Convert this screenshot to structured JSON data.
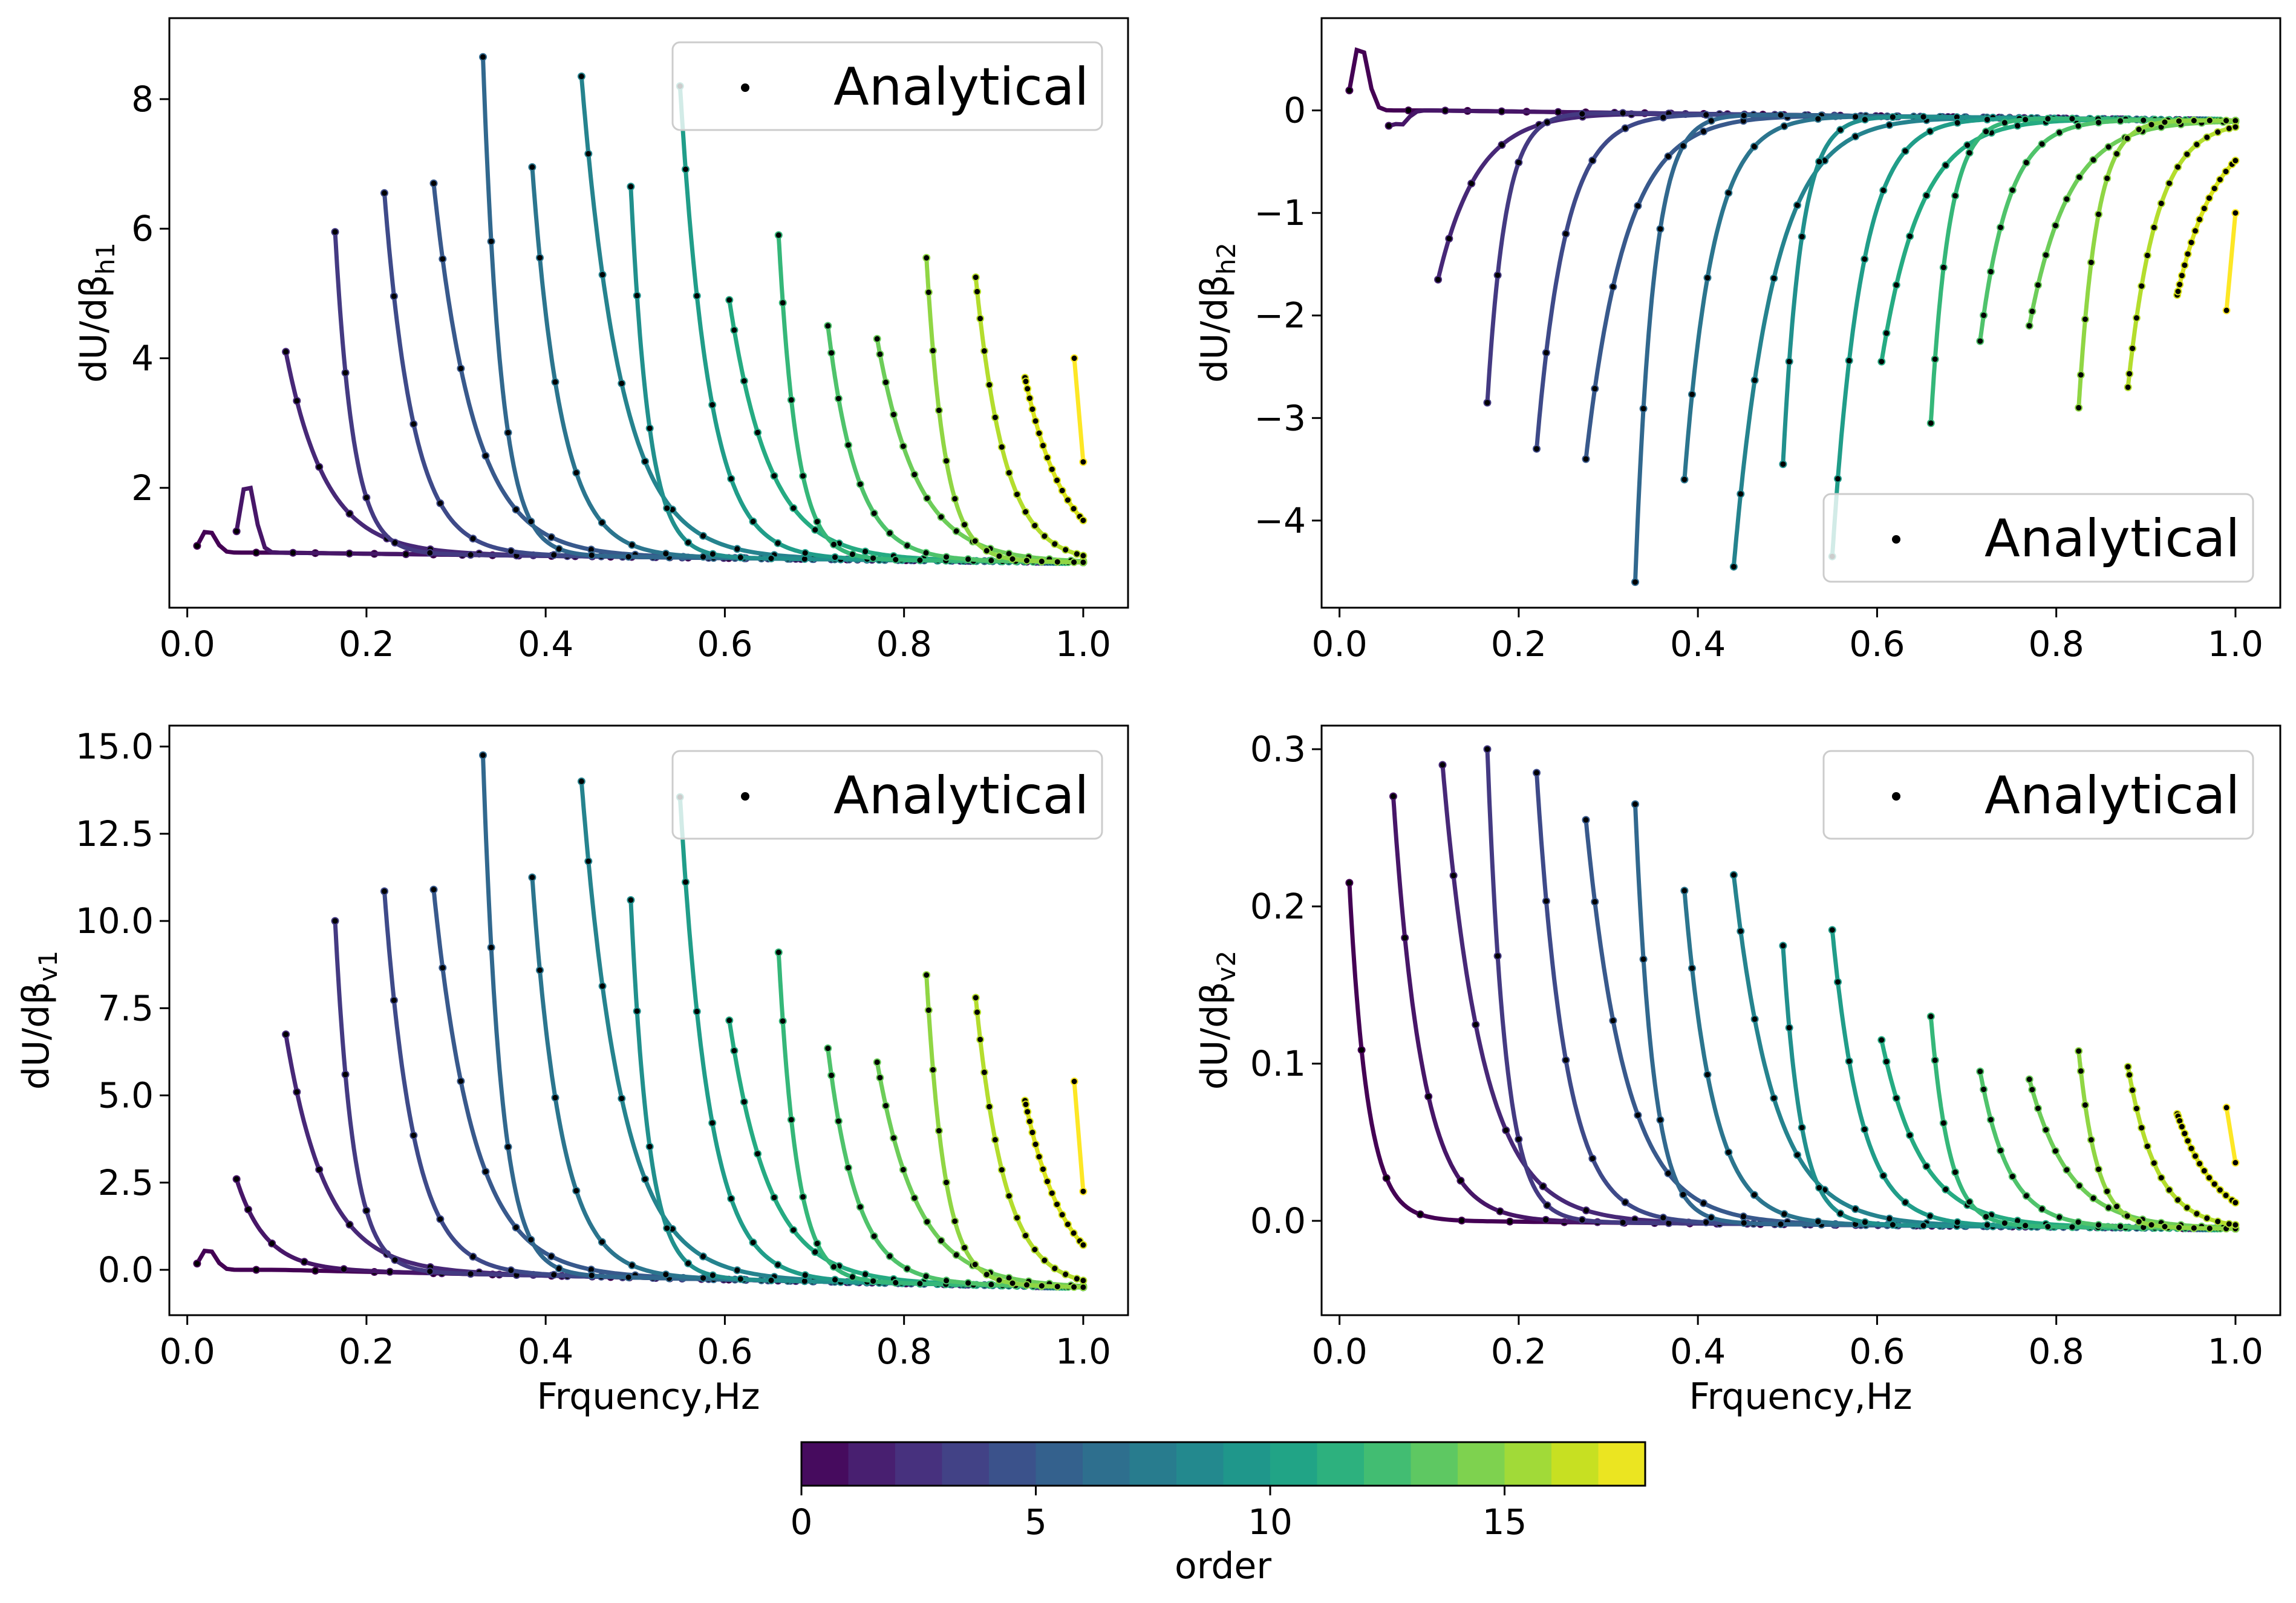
{
  "figure_title": "",
  "legend_label": "Analytical",
  "colormap": [
    "#440154",
    "#481a6c",
    "#472f7d",
    "#414487",
    "#39568c",
    "#31688e",
    "#2a788e",
    "#23888e",
    "#1f988b",
    "#22a884",
    "#35b779",
    "#54c568",
    "#7ad151",
    "#a5db36",
    "#d2e21b",
    "#fde725"
  ],
  "marker_color": "#000000",
  "chart_data": [
    {
      "type": "line",
      "id": "h1",
      "title": "",
      "ylabel_base": "dU/dβ",
      "ylabel_sub": "h1",
      "xlabel": "",
      "xlim": [
        -0.02,
        1.05
      ],
      "ylim": [
        0.15,
        9.25
      ],
      "xticks": [
        "0.0",
        "0.2",
        "0.4",
        "0.6",
        "0.8",
        "1.0"
      ],
      "xtick_values": [
        0,
        0.2,
        0.4,
        0.6,
        0.8,
        1.0
      ],
      "yticks": [
        "2",
        "4",
        "6",
        "8"
      ],
      "ytick_values": [
        2,
        4,
        6,
        8
      ],
      "legend_position": "upper-right",
      "baseline": 1.0,
      "baseline_end": 0.85,
      "series": [
        {
          "order": 0,
          "start_x": 0.011,
          "peak": 1.35,
          "kind": "bump"
        },
        {
          "order": 1,
          "start_x": 0.055,
          "peak": 2.1,
          "kind": "bump"
        },
        {
          "order": 2,
          "start_x": 0.11,
          "peak": 4.1,
          "kind": "drop"
        },
        {
          "order": 3,
          "start_x": 0.165,
          "peak": 5.95,
          "kind": "drop"
        },
        {
          "order": 4,
          "start_x": 0.22,
          "peak": 6.55,
          "kind": "drop"
        },
        {
          "order": 5,
          "start_x": 0.275,
          "peak": 6.7,
          "kind": "drop"
        },
        {
          "order": 6,
          "start_x": 0.33,
          "peak": 8.65,
          "kind": "drop"
        },
        {
          "order": 7,
          "start_x": 0.385,
          "peak": 6.95,
          "kind": "drop"
        },
        {
          "order": 8,
          "start_x": 0.44,
          "peak": 8.35,
          "kind": "drop"
        },
        {
          "order": 9,
          "start_x": 0.495,
          "peak": 6.65,
          "kind": "drop"
        },
        {
          "order": 10,
          "start_x": 0.55,
          "peak": 8.2,
          "kind": "drop"
        },
        {
          "order": 11,
          "start_x": 0.605,
          "peak": 4.9,
          "kind": "drop"
        },
        {
          "order": 12,
          "start_x": 0.66,
          "peak": 5.9,
          "kind": "drop"
        },
        {
          "order": 13,
          "start_x": 0.715,
          "peak": 4.5,
          "kind": "drop"
        },
        {
          "order": 14,
          "start_x": 0.77,
          "peak": 4.3,
          "kind": "drop"
        },
        {
          "order": 15,
          "start_x": 0.825,
          "peak": 5.55,
          "kind": "drop"
        },
        {
          "order": 16,
          "start_x": 0.88,
          "peak": 5.25,
          "kind": "drop"
        },
        {
          "order": 17,
          "start_x": 0.935,
          "peak": 3.7,
          "kind": "drop"
        },
        {
          "order": 18,
          "start_x": 0.99,
          "peak": 4.0,
          "end": 2.4,
          "kind": "short"
        }
      ]
    },
    {
      "type": "line",
      "id": "h2",
      "title": "",
      "ylabel_base": "dU/dβ",
      "ylabel_sub": "h2",
      "xlabel": "",
      "xlim": [
        -0.02,
        1.05
      ],
      "ylim": [
        -4.85,
        0.9
      ],
      "xticks": [
        "0.0",
        "0.2",
        "0.4",
        "0.6",
        "0.8",
        "1.0"
      ],
      "xtick_values": [
        0,
        0.2,
        0.4,
        0.6,
        0.8,
        1.0
      ],
      "yticks": [
        "−4",
        "−3",
        "−2",
        "−1",
        "0"
      ],
      "ytick_values": [
        -4,
        -3,
        -2,
        -1,
        0
      ],
      "legend_position": "lower-right",
      "baseline": 0.0,
      "baseline_end": -0.1,
      "series": [
        {
          "order": 0,
          "start_x": 0.011,
          "peak": 0.65,
          "kind": "bump"
        },
        {
          "order": 1,
          "start_x": 0.055,
          "peak": -0.15,
          "kind": "dip"
        },
        {
          "order": 2,
          "start_x": 0.11,
          "peak": -1.65,
          "kind": "drop"
        },
        {
          "order": 3,
          "start_x": 0.165,
          "peak": -2.85,
          "kind": "drop"
        },
        {
          "order": 4,
          "start_x": 0.22,
          "peak": -3.3,
          "kind": "drop"
        },
        {
          "order": 5,
          "start_x": 0.275,
          "peak": -3.4,
          "kind": "drop"
        },
        {
          "order": 6,
          "start_x": 0.33,
          "peak": -4.6,
          "kind": "drop"
        },
        {
          "order": 7,
          "start_x": 0.385,
          "peak": -3.6,
          "kind": "drop"
        },
        {
          "order": 8,
          "start_x": 0.44,
          "peak": -4.45,
          "kind": "drop"
        },
        {
          "order": 9,
          "start_x": 0.495,
          "peak": -3.45,
          "kind": "drop"
        },
        {
          "order": 10,
          "start_x": 0.55,
          "peak": -4.35,
          "kind": "drop"
        },
        {
          "order": 11,
          "start_x": 0.605,
          "peak": -2.45,
          "kind": "drop"
        },
        {
          "order": 12,
          "start_x": 0.66,
          "peak": -3.05,
          "kind": "drop"
        },
        {
          "order": 13,
          "start_x": 0.715,
          "peak": -2.25,
          "kind": "drop"
        },
        {
          "order": 14,
          "start_x": 0.77,
          "peak": -2.1,
          "kind": "drop"
        },
        {
          "order": 15,
          "start_x": 0.825,
          "peak": -2.9,
          "kind": "drop"
        },
        {
          "order": 16,
          "start_x": 0.88,
          "peak": -2.7,
          "kind": "drop"
        },
        {
          "order": 17,
          "start_x": 0.935,
          "peak": -1.8,
          "kind": "drop"
        },
        {
          "order": 18,
          "start_x": 0.99,
          "peak": -1.95,
          "end": -1.0,
          "kind": "short"
        }
      ]
    },
    {
      "type": "line",
      "id": "v1",
      "title": "",
      "ylabel_base": "dU/dβ",
      "ylabel_sub": "v1",
      "xlabel": "Frquency,Hz",
      "xlim": [
        -0.02,
        1.05
      ],
      "ylim": [
        -1.3,
        15.6
      ],
      "xticks": [
        "0.0",
        "0.2",
        "0.4",
        "0.6",
        "0.8",
        "1.0"
      ],
      "xtick_values": [
        0,
        0.2,
        0.4,
        0.6,
        0.8,
        1.0
      ],
      "yticks": [
        "0.0",
        "2.5",
        "5.0",
        "7.5",
        "10.0",
        "12.5",
        "15.0"
      ],
      "ytick_values": [
        0,
        2.5,
        5,
        7.5,
        10,
        12.5,
        15
      ],
      "legend_position": "upper-right",
      "baseline": 0.0,
      "baseline_end": -0.5,
      "series": [
        {
          "order": 0,
          "start_x": 0.011,
          "peak": 0.6,
          "kind": "bump"
        },
        {
          "order": 1,
          "start_x": 0.055,
          "peak": 2.6,
          "kind": "drop"
        },
        {
          "order": 2,
          "start_x": 0.11,
          "peak": 6.75,
          "kind": "drop"
        },
        {
          "order": 3,
          "start_x": 0.165,
          "peak": 10.0,
          "kind": "drop"
        },
        {
          "order": 4,
          "start_x": 0.22,
          "peak": 10.85,
          "kind": "drop"
        },
        {
          "order": 5,
          "start_x": 0.275,
          "peak": 10.9,
          "kind": "drop"
        },
        {
          "order": 6,
          "start_x": 0.33,
          "peak": 14.75,
          "kind": "drop"
        },
        {
          "order": 7,
          "start_x": 0.385,
          "peak": 11.25,
          "kind": "drop"
        },
        {
          "order": 8,
          "start_x": 0.44,
          "peak": 14.0,
          "kind": "drop"
        },
        {
          "order": 9,
          "start_x": 0.495,
          "peak": 10.6,
          "kind": "drop"
        },
        {
          "order": 10,
          "start_x": 0.55,
          "peak": 13.55,
          "kind": "drop"
        },
        {
          "order": 11,
          "start_x": 0.605,
          "peak": 7.15,
          "kind": "drop"
        },
        {
          "order": 12,
          "start_x": 0.66,
          "peak": 9.1,
          "kind": "drop"
        },
        {
          "order": 13,
          "start_x": 0.715,
          "peak": 6.35,
          "kind": "drop"
        },
        {
          "order": 14,
          "start_x": 0.77,
          "peak": 5.95,
          "kind": "drop"
        },
        {
          "order": 15,
          "start_x": 0.825,
          "peak": 8.45,
          "kind": "drop"
        },
        {
          "order": 16,
          "start_x": 0.88,
          "peak": 7.8,
          "kind": "drop"
        },
        {
          "order": 17,
          "start_x": 0.935,
          "peak": 4.85,
          "kind": "drop"
        },
        {
          "order": 18,
          "start_x": 0.99,
          "peak": 5.4,
          "end": 2.25,
          "kind": "short"
        }
      ]
    },
    {
      "type": "line",
      "id": "v2",
      "title": "",
      "ylabel_base": "dU/dβ",
      "ylabel_sub": "v2",
      "xlabel": "Frquency,Hz",
      "xlim": [
        -0.02,
        1.05
      ],
      "ylim": [
        -0.06,
        0.315
      ],
      "xticks": [
        "0.0",
        "0.2",
        "0.4",
        "0.6",
        "0.8",
        "1.0"
      ],
      "xtick_values": [
        0,
        0.2,
        0.4,
        0.6,
        0.8,
        1.0
      ],
      "yticks": [
        "0.0",
        "0.1",
        "0.2",
        "0.3"
      ],
      "ytick_values": [
        0,
        0.1,
        0.2,
        0.3
      ],
      "legend_position": "upper-right",
      "baseline": 0.0,
      "baseline_end": -0.005,
      "series": [
        {
          "order": 0,
          "start_x": 0.011,
          "peak": 0.215,
          "kind": "drop"
        },
        {
          "order": 1,
          "start_x": 0.06,
          "peak": 0.27,
          "kind": "drop"
        },
        {
          "order": 2,
          "start_x": 0.115,
          "peak": 0.29,
          "kind": "drop"
        },
        {
          "order": 3,
          "start_x": 0.165,
          "peak": 0.3,
          "kind": "drop"
        },
        {
          "order": 4,
          "start_x": 0.22,
          "peak": 0.285,
          "kind": "drop"
        },
        {
          "order": 5,
          "start_x": 0.275,
          "peak": 0.255,
          "kind": "drop"
        },
        {
          "order": 6,
          "start_x": 0.33,
          "peak": 0.265,
          "kind": "drop"
        },
        {
          "order": 7,
          "start_x": 0.385,
          "peak": 0.21,
          "kind": "drop"
        },
        {
          "order": 8,
          "start_x": 0.44,
          "peak": 0.22,
          "kind": "drop"
        },
        {
          "order": 9,
          "start_x": 0.495,
          "peak": 0.175,
          "kind": "drop"
        },
        {
          "order": 10,
          "start_x": 0.55,
          "peak": 0.185,
          "kind": "drop"
        },
        {
          "order": 11,
          "start_x": 0.605,
          "peak": 0.115,
          "kind": "drop"
        },
        {
          "order": 12,
          "start_x": 0.66,
          "peak": 0.13,
          "kind": "drop"
        },
        {
          "order": 13,
          "start_x": 0.715,
          "peak": 0.095,
          "kind": "drop"
        },
        {
          "order": 14,
          "start_x": 0.77,
          "peak": 0.09,
          "kind": "drop"
        },
        {
          "order": 15,
          "start_x": 0.825,
          "peak": 0.108,
          "kind": "drop"
        },
        {
          "order": 16,
          "start_x": 0.88,
          "peak": 0.098,
          "kind": "drop"
        },
        {
          "order": 17,
          "start_x": 0.935,
          "peak": 0.068,
          "kind": "drop"
        },
        {
          "order": 18,
          "start_x": 0.99,
          "peak": 0.072,
          "end": 0.037,
          "kind": "short"
        }
      ]
    }
  ],
  "colorbar": {
    "label": "order",
    "range": [
      0,
      18
    ],
    "ticks": [
      "0",
      "5",
      "10",
      "15"
    ],
    "tick_values": [
      0,
      5,
      10,
      15
    ],
    "segments": 18
  }
}
